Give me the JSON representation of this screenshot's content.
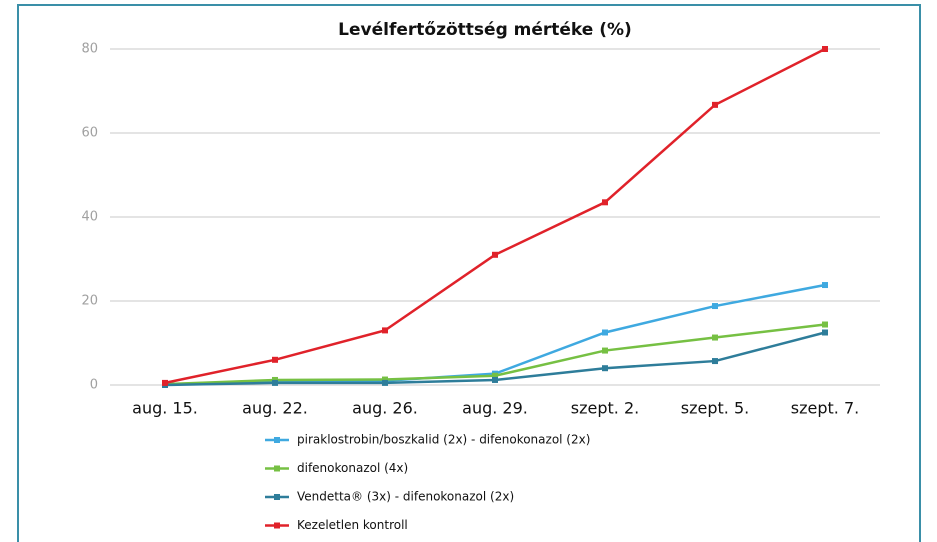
{
  "chart_data": {
    "type": "line",
    "title": "Levélfertőzöttség mértéke (%)",
    "categories": [
      "aug. 15.",
      "aug. 22.",
      "aug. 26.",
      "aug. 29.",
      "szept. 2.",
      "szept. 5.",
      "szept. 7."
    ],
    "series": [
      {
        "name": "piraklostrobin/boszkalid (2x) - difenokonazol (2x)",
        "color": "#3fa9e0",
        "values": [
          0.2,
          0.8,
          1,
          2.7,
          12.5,
          18.8,
          23.8
        ]
      },
      {
        "name": "difenokonazol (4x)",
        "color": "#76c043",
        "values": [
          0.2,
          1.2,
          1.3,
          2.2,
          8.2,
          11.3,
          14.4
        ]
      },
      {
        "name": "Vendetta® (3x) - difenokonazol (2x)",
        "color": "#2e7d9a",
        "values": [
          0,
          0.5,
          0.5,
          1.2,
          4,
          5.7,
          12.5
        ]
      },
      {
        "name": "Kezeletlen kontroll",
        "color": "#e0222a",
        "values": [
          0.5,
          6,
          13,
          31,
          43.5,
          66.7,
          80
        ]
      }
    ],
    "ylim": [
      0,
      80
    ],
    "yticks": [
      0,
      20,
      40,
      60,
      80
    ],
    "grid": true
  }
}
